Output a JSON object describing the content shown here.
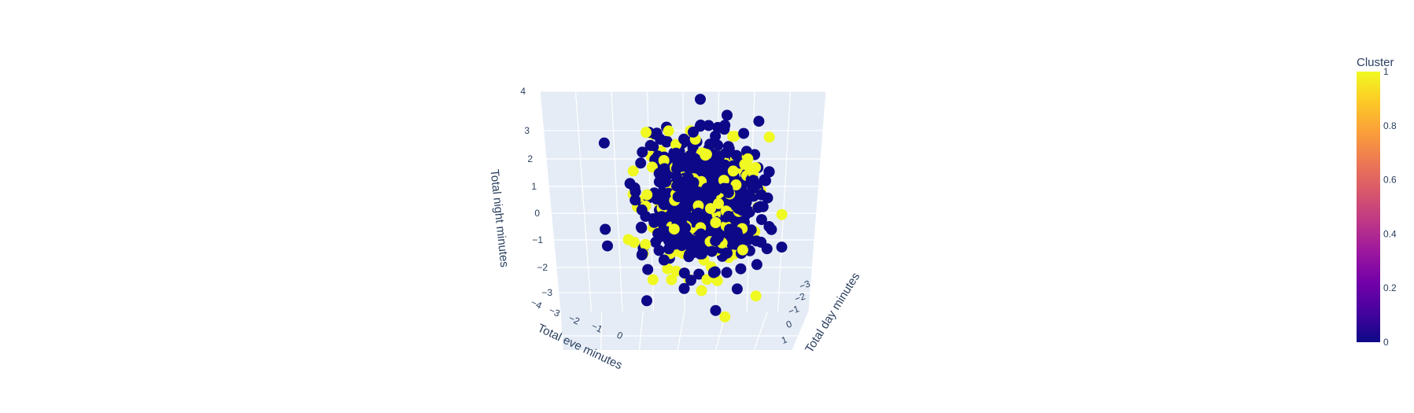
{
  "chart_data": {
    "type": "scatter",
    "subtype": "scatter3d",
    "title": "",
    "axes": {
      "x": {
        "label": "Total eve minutes",
        "ticks": [
          "−4",
          "−3",
          "−2",
          "−1",
          "0"
        ],
        "range": [
          -4,
          4
        ]
      },
      "y": {
        "label": "Total day minutes",
        "ticks": [
          "−3",
          "−2",
          "−1",
          "0",
          "1"
        ],
        "range": [
          -4,
          4
        ]
      },
      "z": {
        "label": "Total night minutes",
        "ticks": [
          "−3",
          "−2",
          "−1",
          "0",
          "1",
          "2",
          "3",
          "4"
        ],
        "range": [
          -3.5,
          4
        ]
      }
    },
    "scene_background": "#e5ecf6",
    "grid": true,
    "colorbar": {
      "title": "Cluster",
      "ticks": [
        "0",
        "0.2",
        "0.4",
        "0.6",
        "0.8",
        "1"
      ],
      "range": [
        0,
        1
      ],
      "colorscale": [
        "#0d0887",
        "#46039f",
        "#7201a8",
        "#9c179e",
        "#bd3786",
        "#d8576b",
        "#ed7953",
        "#fb9f3a",
        "#fdca26",
        "#f0f921"
      ]
    },
    "series": [
      {
        "cluster": 0,
        "color": "#0d0887",
        "approx_points": 600
      },
      {
        "cluster": 1,
        "color": "#f0f921",
        "approx_points": 200
      }
    ],
    "point_distribution": "approximately standard normal in all three dimensions, centred at 0"
  }
}
